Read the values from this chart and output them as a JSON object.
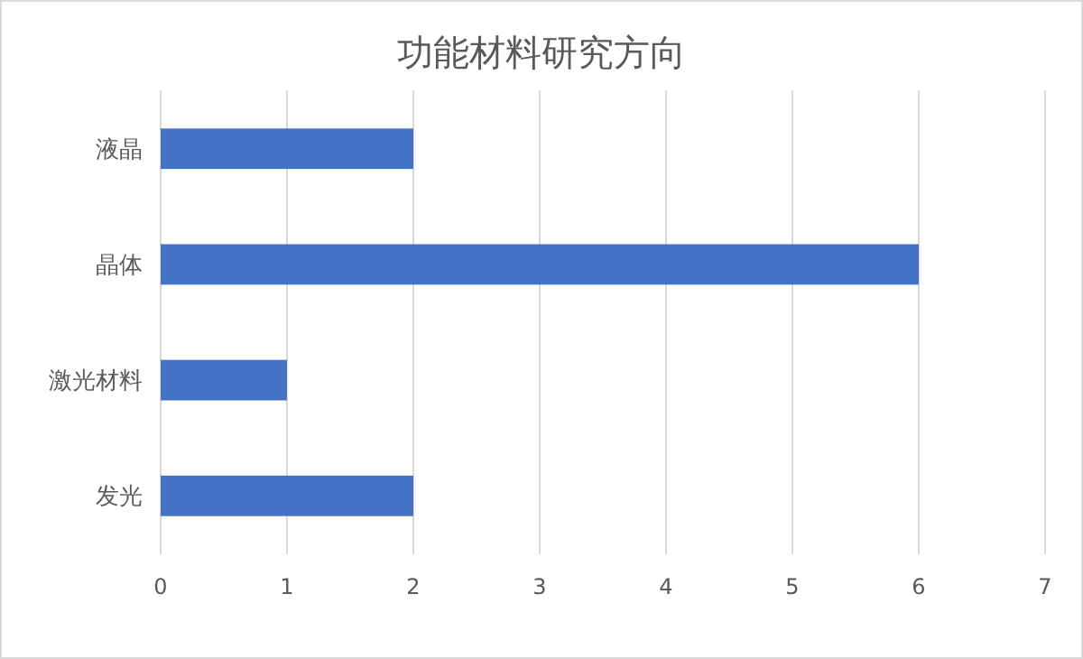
{
  "chart_data": {
    "type": "bar",
    "orientation": "horizontal",
    "title": "功能材料研究方向",
    "categories": [
      "液晶",
      "晶体",
      "激光材料",
      "发光"
    ],
    "values": [
      2,
      6,
      1,
      2
    ],
    "color": "#4472c4",
    "xlim": [
      0,
      7
    ],
    "xticks": [
      0,
      1,
      2,
      3,
      4,
      5,
      6,
      7
    ],
    "grid": "x"
  }
}
